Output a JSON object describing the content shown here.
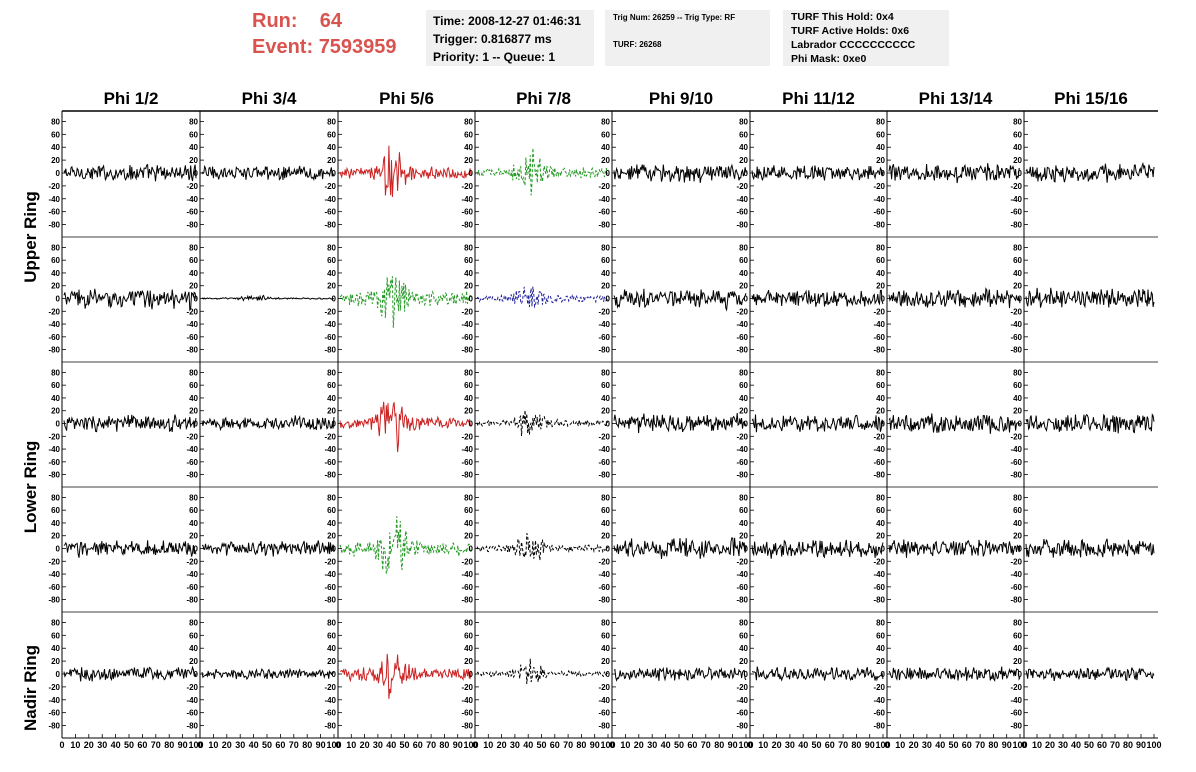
{
  "header": {
    "run_label": "Run:",
    "run_value": "64",
    "event_label": "Event:",
    "event_value": "7593959",
    "time_line": "Time: 2008-12-27 01:46:31",
    "trigger_line": "Trigger: 0.816877 ms",
    "priority_line": "Priority: 1 -- Queue: 1",
    "trig_num_line": "Trig Num: 26259 -- Trig Type: RF",
    "turf_line": "TURF: 26268",
    "turf_this_hold": "TURF This Hold: 0x4",
    "turf_active_holds": "TURF Active Holds: 0x6",
    "labrador": "Labrador CCCCCCCCCC",
    "phi_mask": "Phi Mask: 0xe0"
  },
  "colors": {
    "header_red": "#d9534f",
    "trace_black": "#000000",
    "trace_red": "#cc2222",
    "trace_green": "#229922",
    "trace_blue": "#22229a",
    "info_bg": "#f0f0f0"
  },
  "chart_data": {
    "type": "line",
    "columns": [
      "Phi 1/2",
      "Phi 3/4",
      "Phi 5/6",
      "Phi 7/8",
      "Phi 9/10",
      "Phi 11/12",
      "Phi 13/14",
      "Phi 15/16"
    ],
    "ring_labels": [
      "Upper Ring",
      "Lower Ring",
      "Nadir Ring"
    ],
    "x_ticks": [
      "0",
      "10",
      "20",
      "30",
      "40",
      "50",
      "60",
      "70",
      "80",
      "90",
      "100"
    ],
    "y_ticks": [
      "80",
      "60",
      "40",
      "20",
      "0",
      "-20",
      "-40",
      "-60",
      "-80"
    ],
    "xlim": [
      0,
      100
    ],
    "ylim": [
      -90,
      90
    ],
    "grid": false,
    "rows": [
      {
        "styles": [
          "black",
          "black",
          "red",
          "green-dash",
          "black",
          "black",
          "black",
          "black"
        ],
        "amps": [
          11,
          9,
          15,
          13,
          12,
          10,
          12,
          12
        ]
      },
      {
        "styles": [
          "black",
          "black-flat",
          "green-dash",
          "blue-dash",
          "black",
          "black",
          "black",
          "black"
        ],
        "amps": [
          13,
          2,
          19,
          10,
          13,
          11,
          12,
          13
        ]
      },
      {
        "styles": [
          "black",
          "black",
          "red",
          "black-dash",
          "black",
          "black",
          "black",
          "black"
        ],
        "amps": [
          11,
          9,
          16,
          9,
          12,
          11,
          12,
          12
        ]
      },
      {
        "styles": [
          "black",
          "black",
          "green-dash",
          "black-dash",
          "black",
          "black",
          "black",
          "black"
        ],
        "amps": [
          11,
          10,
          20,
          9,
          13,
          12,
          11,
          12
        ]
      },
      {
        "styles": [
          "black",
          "black",
          "red",
          "black-dash",
          "black",
          "black",
          "black",
          "black"
        ],
        "amps": [
          9,
          6,
          15,
          7,
          8,
          9,
          9,
          9
        ]
      }
    ]
  }
}
